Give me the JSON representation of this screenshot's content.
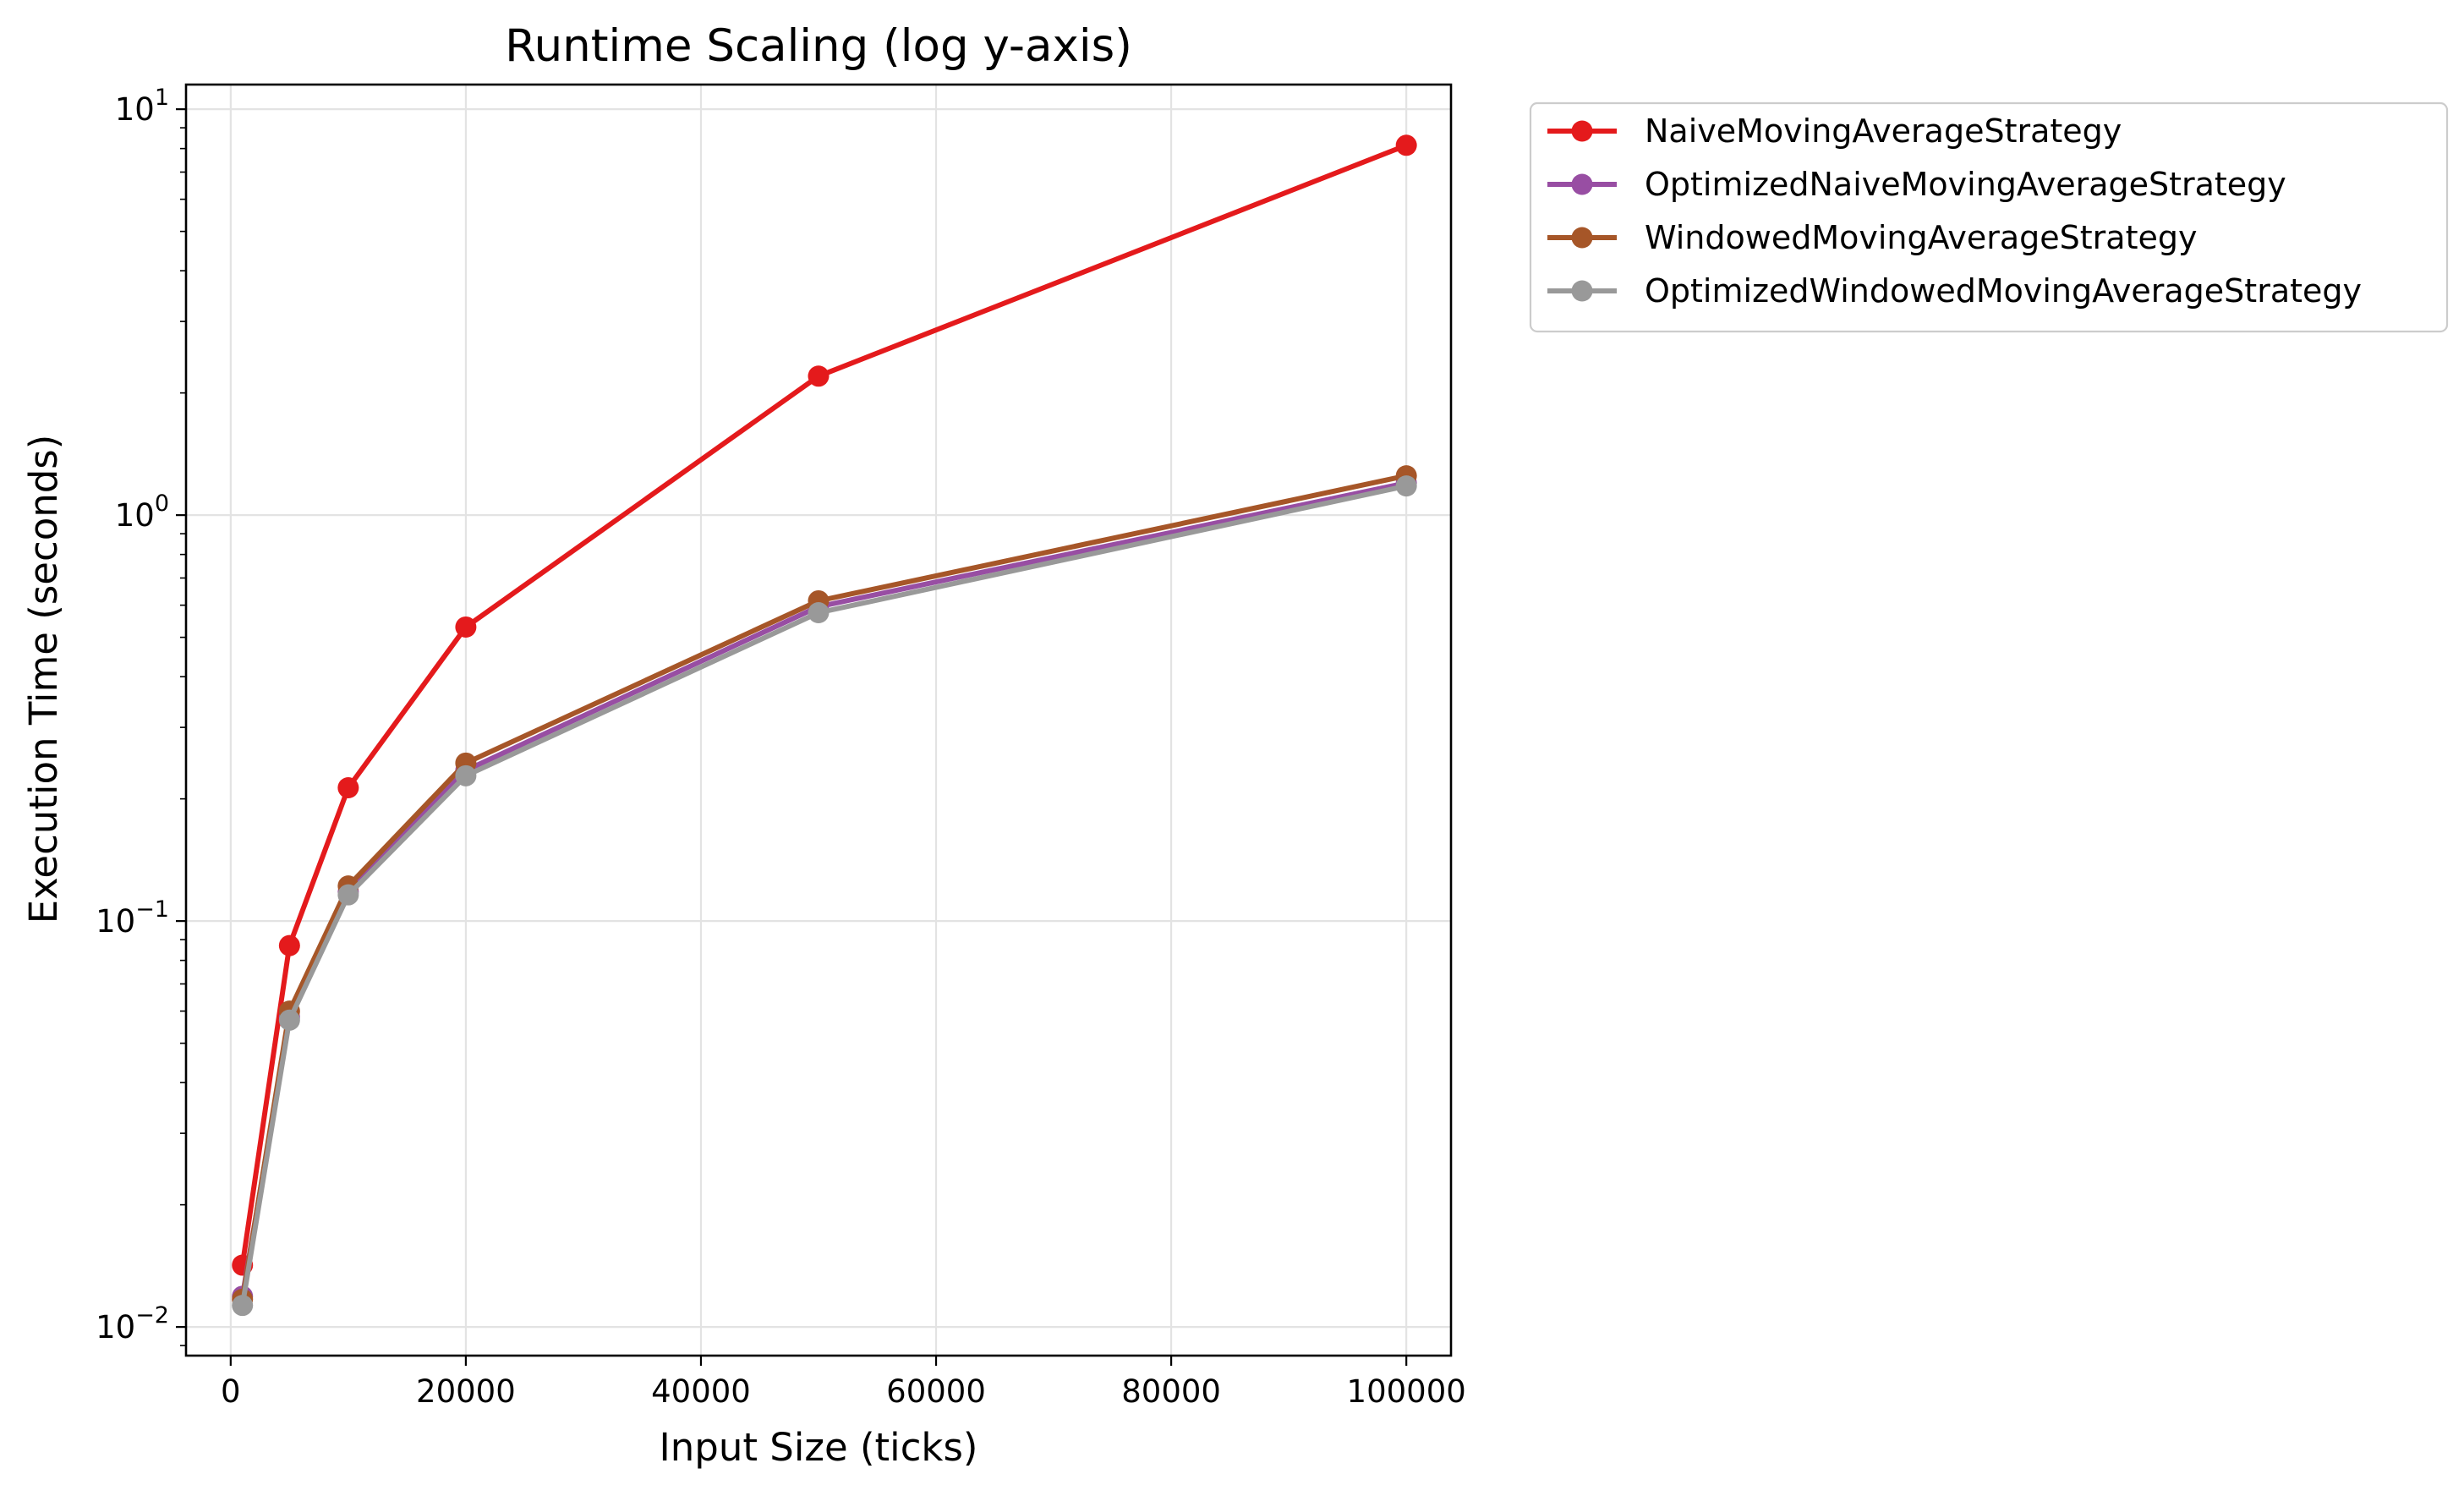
{
  "chart_data": {
    "type": "line",
    "title": "Runtime Scaling (log y-axis)",
    "xlabel": "Input Size (ticks)",
    "ylabel": "Execution Time (seconds)",
    "xscale": "linear",
    "yscale": "log",
    "xlim": [
      -3800,
      103800
    ],
    "ylim": [
      0.0085,
      11.5
    ],
    "xticks": [
      0,
      20000,
      40000,
      60000,
      80000,
      100000
    ],
    "xtick_labels": [
      "0",
      "20000",
      "40000",
      "60000",
      "80000",
      "100000"
    ],
    "yticks": [
      0.01,
      0.1,
      1,
      10
    ],
    "ytick_labels": [
      {
        "base": "10",
        "exp": "−2"
      },
      {
        "base": "10",
        "exp": "−1"
      },
      {
        "base": "10",
        "exp": "0"
      },
      {
        "base": "10",
        "exp": "1"
      }
    ],
    "grid": true,
    "legend_position": "outside top-right",
    "x": [
      1000,
      5000,
      10000,
      20000,
      50000,
      100000
    ],
    "series": [
      {
        "name": "NaiveMovingAverageStrategy",
        "color": "#e41a1c",
        "values": [
          0.0142,
          0.087,
          0.213,
          0.53,
          2.2,
          8.15
        ]
      },
      {
        "name": "OptimizedNaiveMovingAverageStrategy",
        "color": "#984ea3",
        "values": [
          0.0119,
          0.058,
          0.118,
          0.235,
          0.595,
          1.2
        ]
      },
      {
        "name": "WindowedMovingAverageStrategy",
        "color": "#a65628",
        "values": [
          0.0117,
          0.06,
          0.122,
          0.245,
          0.615,
          1.25
        ]
      },
      {
        "name": "OptimizedWindowedMovingAverageStrategy",
        "color": "#999999",
        "values": [
          0.0113,
          0.057,
          0.116,
          0.228,
          0.575,
          1.18
        ]
      }
    ]
  }
}
